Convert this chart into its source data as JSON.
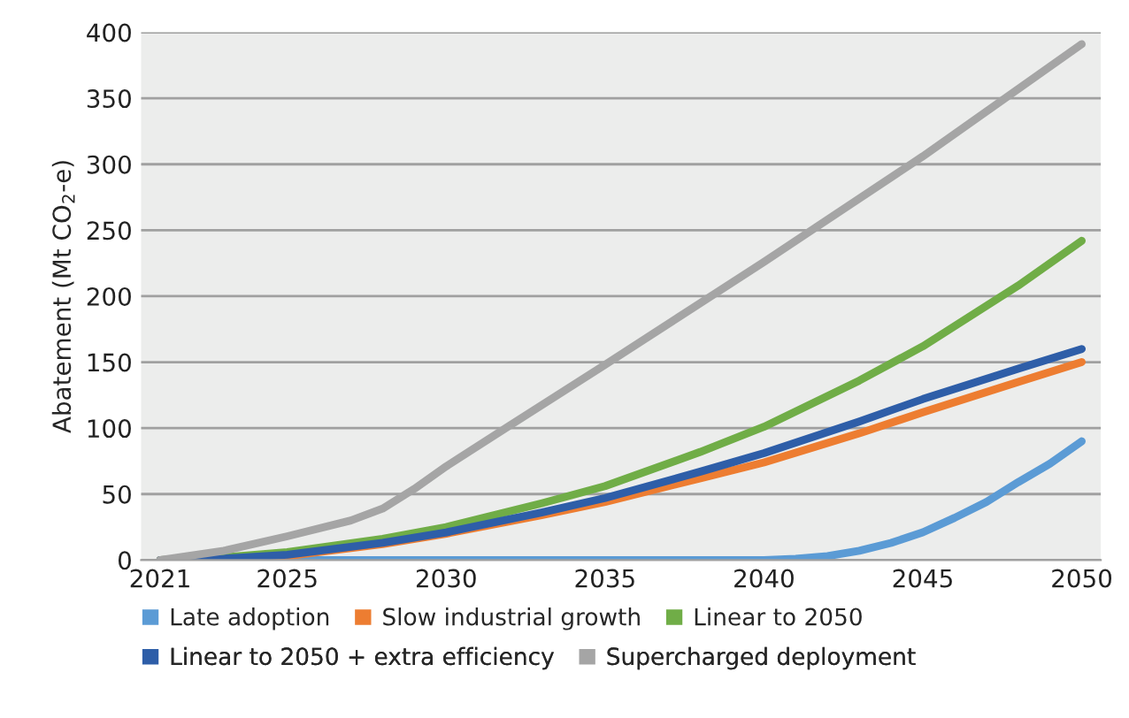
{
  "chart_data": {
    "type": "line",
    "ylabel": "Abatement (Mt CO$_{2}$-e)",
    "xlim": [
      2020.4,
      2050.6
    ],
    "xticks": [
      2021,
      2025,
      2030,
      2035,
      2040,
      2045,
      2050
    ],
    "ylim": [
      0,
      400
    ],
    "yticks": [
      0,
      50,
      100,
      150,
      200,
      250,
      300,
      350,
      400
    ],
    "grid": "y",
    "legend": "bottom",
    "marker": "none",
    "line_style": "solid",
    "series": [
      {
        "name": "Late adoption",
        "color": "#5b9bd5",
        "x": [
          2021,
          2025,
          2030,
          2035,
          2040,
          2041,
          2042,
          2043,
          2044,
          2045,
          2046,
          2047,
          2048,
          2049,
          2050
        ],
        "values": [
          0,
          0,
          0,
          0,
          0,
          1,
          3,
          7,
          13,
          21,
          32,
          44,
          59,
          73,
          90
        ]
      },
      {
        "name": "Slow industrial growth",
        "color": "#ed7d31",
        "x": [
          2021,
          2023,
          2025,
          2028,
          2030,
          2033,
          2035,
          2038,
          2040,
          2043,
          2045,
          2048,
          2050
        ],
        "values": [
          0,
          1,
          3,
          12,
          20,
          34,
          44,
          62,
          74,
          96,
          112,
          135,
          150
        ]
      },
      {
        "name": "Linear to 2050",
        "color": "#70ad47",
        "x": [
          2021,
          2023,
          2025,
          2028,
          2030,
          2033,
          2035,
          2038,
          2040,
          2043,
          2045,
          2048,
          2050
        ],
        "values": [
          0,
          2,
          6,
          16,
          25,
          43,
          56,
          82,
          101,
          136,
          162,
          208,
          242
        ]
      },
      {
        "name": "Linear to 2050 + extra efficiency",
        "color": "#2e5ea8",
        "x": [
          2021,
          2023,
          2025,
          2028,
          2030,
          2033,
          2035,
          2038,
          2040,
          2043,
          2045,
          2048,
          2050
        ],
        "values": [
          0,
          1,
          4,
          13,
          21,
          36,
          47,
          67,
          81,
          105,
          122,
          145,
          160
        ]
      },
      {
        "name": "Supercharged deployment",
        "color": "#a5a5a5",
        "x": [
          2021,
          2023,
          2025,
          2027,
          2028,
          2029,
          2030,
          2032,
          2035,
          2040,
          2045,
          2050
        ],
        "values": [
          0,
          7,
          18,
          30,
          39,
          54,
          71,
          102,
          148,
          226,
          306,
          391
        ]
      }
    ]
  }
}
